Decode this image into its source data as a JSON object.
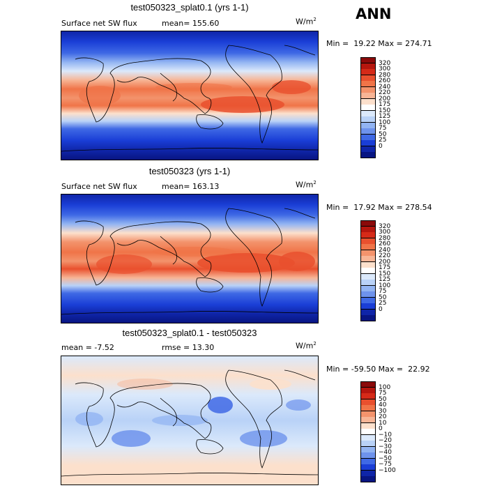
{
  "season": "ANN",
  "panels": [
    {
      "title": "test050323_splat0.1 (yrs 1-1)",
      "left_label": "Surface net SW flux",
      "right_label": "mean= 155.60",
      "units": "W/m",
      "units_exp": "2",
      "minmax": "Min =  19.22 Max = 274.71",
      "levels": [
        "320",
        "300",
        "280",
        "260",
        "240",
        "220",
        "200",
        "175",
        "150",
        "125",
        "100",
        "75",
        "50",
        "25",
        "0"
      ],
      "colors": [
        "#8b0a0a",
        "#b5160e",
        "#d52a18",
        "#e9502e",
        "#f07448",
        "#f3936c",
        "#f7b596",
        "#fce0cc",
        "#ffffff",
        "#dbe9fb",
        "#b9d2f7",
        "#92b4f2",
        "#6e93ec",
        "#3f69e5",
        "#1a3ed6",
        "#0f25a8",
        "#081582"
      ]
    },
    {
      "title": "test050323 (yrs 1-1)",
      "left_label": "Surface net SW flux",
      "right_label": "mean= 163.13",
      "units": "W/m",
      "units_exp": "2",
      "minmax": "Min =  17.92 Max = 278.54",
      "levels": [
        "320",
        "300",
        "280",
        "260",
        "240",
        "220",
        "200",
        "175",
        "150",
        "125",
        "100",
        "75",
        "50",
        "25",
        "0"
      ],
      "colors": [
        "#8b0a0a",
        "#b5160e",
        "#d52a18",
        "#e9502e",
        "#f07448",
        "#f3936c",
        "#f7b596",
        "#fce0cc",
        "#ffffff",
        "#dbe9fb",
        "#b9d2f7",
        "#92b4f2",
        "#6e93ec",
        "#3f69e5",
        "#1a3ed6",
        "#0f25a8",
        "#081582"
      ]
    },
    {
      "title": "test050323_splat0.1 - test050323",
      "left_label": "mean =   -7.52",
      "right_label": "rmse =  13.30",
      "units": "W/m",
      "units_exp": "2",
      "minmax": "Min = -59.50 Max =  22.92",
      "levels": [
        "100",
        "75",
        "50",
        "40",
        "30",
        "20",
        "10",
        "0",
        "−10",
        "−20",
        "−30",
        "−40",
        "−50",
        "−75",
        "−100"
      ],
      "colors": [
        "#8b0a0a",
        "#b5160e",
        "#d52a18",
        "#e9502e",
        "#f07448",
        "#f3936c",
        "#f7b596",
        "#fce0cc",
        "#ffffff",
        "#dbe9fb",
        "#b9d2f7",
        "#92b4f2",
        "#6e93ec",
        "#3f69e5",
        "#1a3ed6",
        "#0f25a8",
        "#081582"
      ]
    }
  ]
}
